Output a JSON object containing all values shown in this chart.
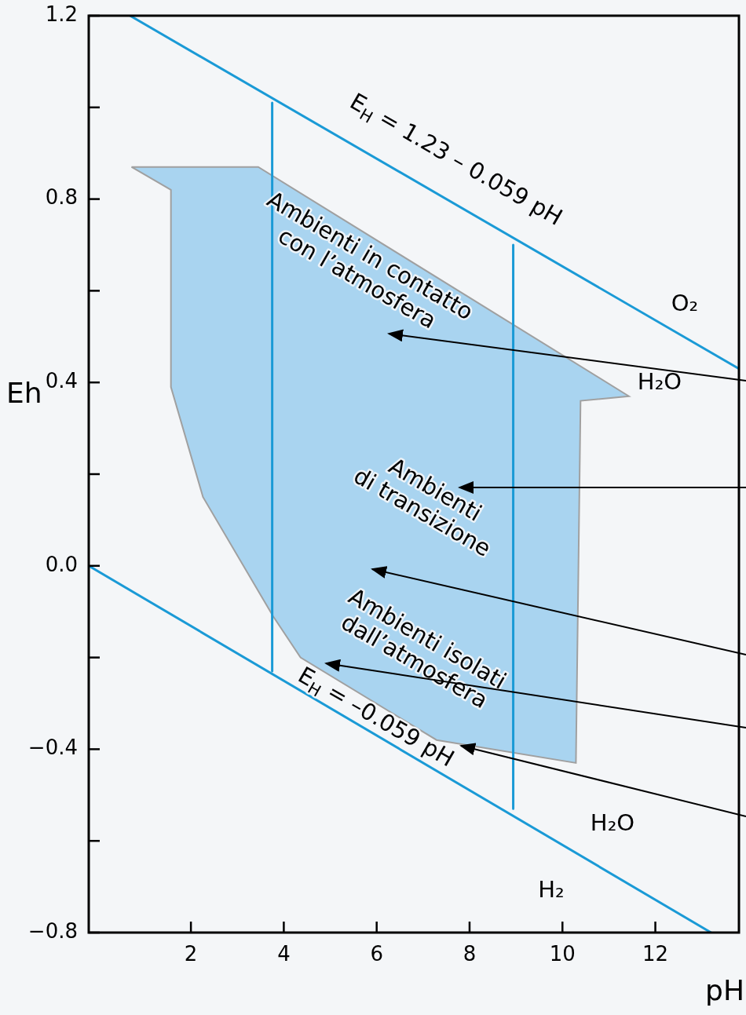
{
  "chart_data": {
    "type": "line",
    "xlabel": "pH",
    "ylabel": "Eh",
    "xlim": [
      -0.2,
      13.8
    ],
    "ylim": [
      -0.8,
      1.2
    ],
    "xticks": [
      2,
      4,
      6,
      8,
      10,
      12
    ],
    "yticks": [
      {
        "value": 1.2,
        "label": "1.2"
      },
      {
        "value": 1.0,
        "label": null
      },
      {
        "value": 0.8,
        "label": "0.8"
      },
      {
        "value": 0.6,
        "label": null
      },
      {
        "value": 0.4,
        "label": "0.4"
      },
      {
        "value": 0.2,
        "label": null
      },
      {
        "value": 0,
        "label": "0.0"
      },
      {
        "value": -0.2,
        "label": null
      },
      {
        "value": -0.4,
        "label": "−0.4"
      },
      {
        "value": -0.6,
        "label": null
      },
      {
        "value": -0.8,
        "label": "−0.8"
      }
    ],
    "grid": false,
    "legend": false,
    "series": [
      {
        "type": "area",
        "color": "#a9d4f0",
        "x": [
          0.72,
          3.45,
          11.43,
          10.39,
          10.29,
          7.29,
          4.36,
          3.77,
          2.26,
          1.57,
          1.57,
          0.72
        ],
        "values": [
          0.87,
          0.87,
          0.37,
          0.36,
          -0.43,
          -0.38,
          -0.2,
          -0.11,
          0.15,
          0.39,
          0.82,
          0.87
        ]
      },
      {
        "type": "line",
        "color": "#1a9ad6",
        "x": [
          0.69,
          13.8
        ],
        "values": [
          1.2,
          0.43
        ]
      },
      {
        "type": "line",
        "color": "#1a9ad6",
        "x": [
          -0.2,
          13.2
        ],
        "values": [
          0,
          -0.8
        ]
      },
      {
        "type": "line",
        "color": "#1a9ad6",
        "x": [
          3.75,
          3.75
        ],
        "values": [
          1.01,
          -0.23
        ]
      },
      {
        "type": "line",
        "color": "#1a9ad6",
        "x": [
          8.94,
          8.94
        ],
        "values": [
          0.7,
          -0.53
        ]
      }
    ],
    "annotations": [
      "E$_{H}$ = 1.23 – 0.059 pH",
      "E$_{H}$ = –0.059 pH",
      "O₂",
      "H₂O",
      "H₂O",
      "H₂",
      "Ambienti in contatto\ncon l’atmosfera",
      "Ambienti\ndi transizione",
      "Ambienti isolati\ndall’atmosfera"
    ]
  }
}
